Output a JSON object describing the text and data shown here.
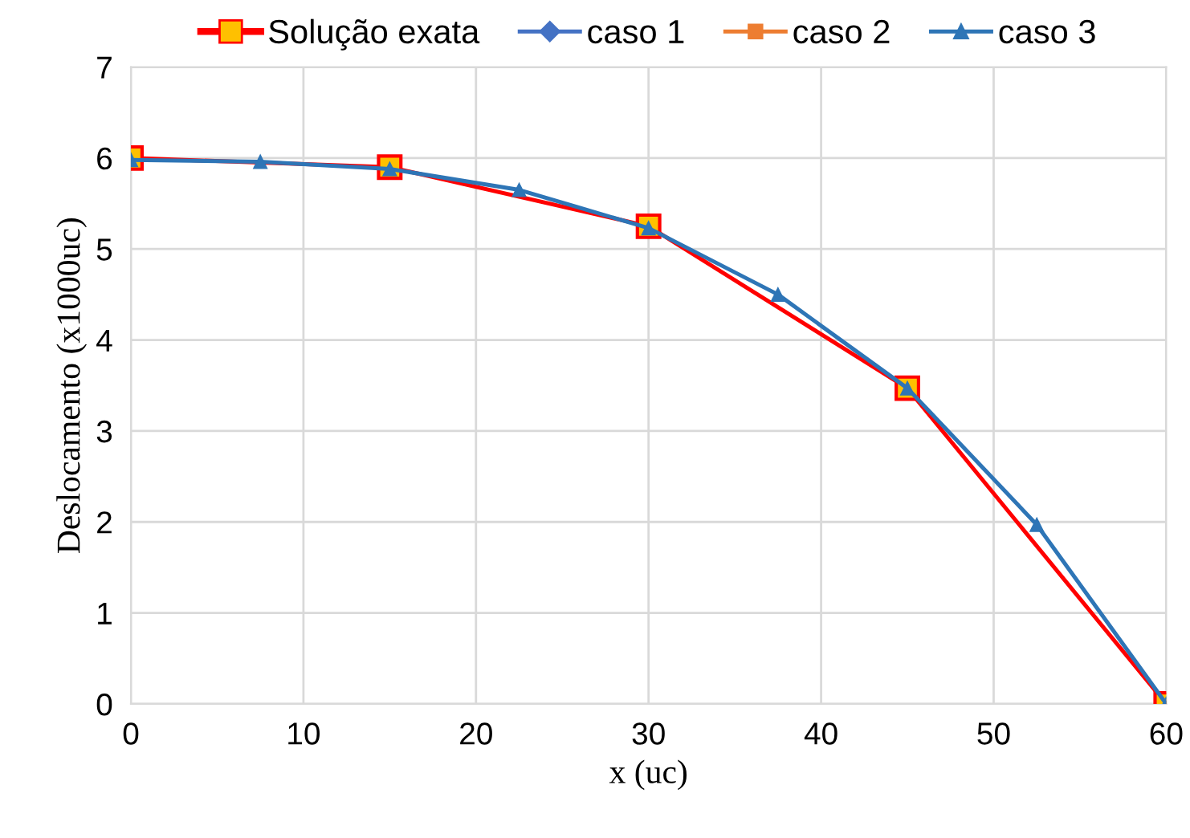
{
  "chart_data": {
    "type": "line",
    "xlabel": "x (uc)",
    "ylabel": "Deslocamento (x1000uc)",
    "xlim": [
      0,
      60
    ],
    "xticks": [
      0,
      10,
      20,
      30,
      40,
      50,
      60
    ],
    "ylim": [
      0,
      7
    ],
    "yticks": [
      0,
      1,
      2,
      3,
      4,
      5,
      6,
      7
    ],
    "grid": true,
    "legend": "top",
    "line_style": "solid",
    "series": [
      {
        "name": "Solução exata",
        "color": "#ff0000",
        "marker": "square",
        "x": [
          0,
          15,
          30,
          45,
          60
        ],
        "values": [
          6.0,
          5.9,
          5.25,
          3.47,
          0.0
        ]
      },
      {
        "name": "caso 1",
        "color": "#4472c4",
        "marker": "diamond"
      },
      {
        "name": "caso 2",
        "color": "#ed7d31",
        "marker": "square"
      },
      {
        "name": "caso 3",
        "color": "#2e75b6",
        "marker": "triangle",
        "x": [
          0,
          7.5,
          15,
          22.5,
          30,
          37.5,
          45,
          52.5,
          60
        ],
        "values": [
          5.98,
          5.96,
          5.88,
          5.65,
          5.23,
          4.5,
          3.47,
          1.97,
          0.0
        ]
      }
    ]
  }
}
